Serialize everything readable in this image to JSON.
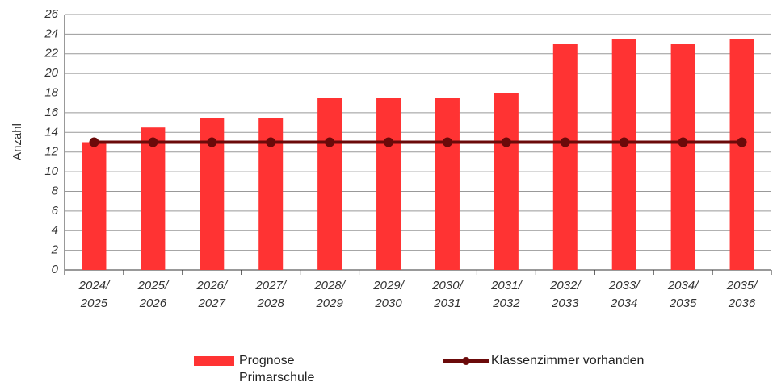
{
  "chart_data": {
    "type": "bar",
    "y_label": "Anzahl",
    "categories": [
      [
        "2024/",
        "2025"
      ],
      [
        "2025/",
        "2026"
      ],
      [
        "2026/",
        "2027"
      ],
      [
        "2027/",
        "2028"
      ],
      [
        "2028/",
        "2029"
      ],
      [
        "2029/",
        "2030"
      ],
      [
        "2030/",
        "2031"
      ],
      [
        "2031/",
        "2032"
      ],
      [
        "2032/",
        "2033"
      ],
      [
        "2033/",
        "2034"
      ],
      [
        "2034/",
        "2035"
      ],
      [
        "2035/",
        "2036"
      ]
    ],
    "series": [
      {
        "name": "Prognose Primarschule",
        "type": "bar",
        "color": "#ff3333",
        "values": [
          13,
          14.5,
          15.5,
          15.5,
          17.5,
          17.5,
          17.5,
          18,
          23,
          23.5,
          23,
          23.5
        ]
      },
      {
        "name": "Klassenzimmer vorhanden",
        "type": "line",
        "color": "#6b0a0a",
        "values": [
          13,
          13,
          13,
          13,
          13,
          13,
          13,
          13,
          13,
          13,
          13,
          13
        ]
      }
    ],
    "ylim": [
      0,
      26
    ],
    "yticks": [
      0,
      2,
      4,
      6,
      8,
      10,
      12,
      14,
      16,
      18,
      20,
      22,
      24,
      26
    ],
    "grid": true
  }
}
